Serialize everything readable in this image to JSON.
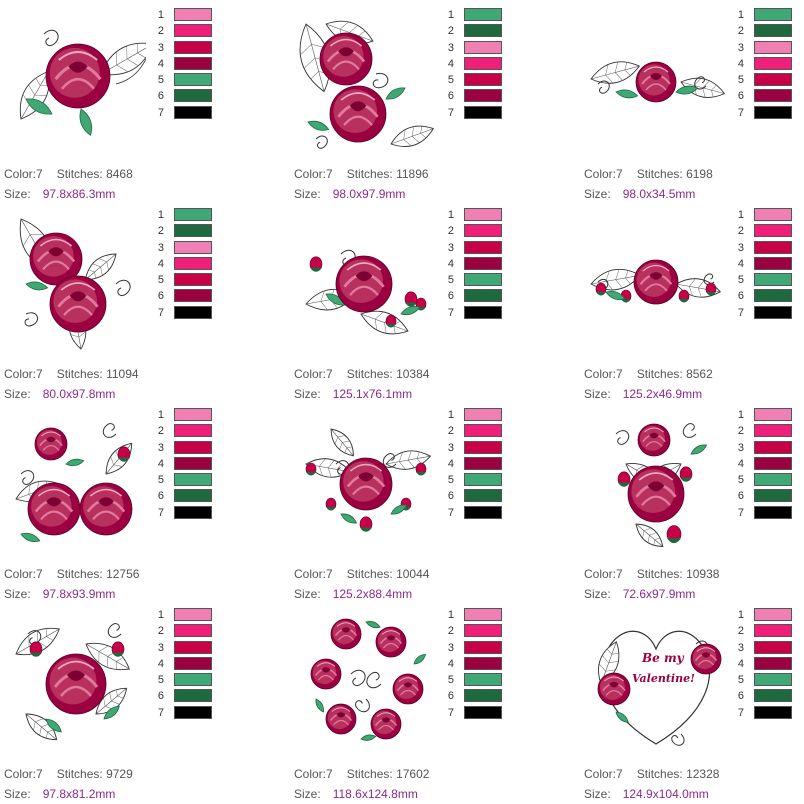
{
  "palette": {
    "rose_light": "#f07fb4",
    "rose_pink": "#f0207a",
    "rose_red": "#c80048",
    "rose_dark": "#9b0040",
    "leaf_light": "#3fa874",
    "leaf_dark": "#1e6a3e",
    "black": "#000000"
  },
  "labels": {
    "color": "Color:",
    "stitches": "Stitches:",
    "size": "Size:"
  },
  "designs": [
    {
      "color_count": "7",
      "stitches": "8468",
      "size": "97.8x86.3mm",
      "thread_numbers": [
        "1",
        "2",
        "3",
        "4",
        "5",
        "6",
        "7"
      ],
      "threads": [
        "#f07fb4",
        "#f0207a",
        "#c80048",
        "#9b0040",
        "#3fa874",
        "#1e6a3e",
        "#000000"
      ]
    },
    {
      "color_count": "7",
      "stitches": "11896",
      "size": "98.0x97.9mm",
      "thread_numbers": [
        "1",
        "2",
        "3",
        "4",
        "5",
        "6",
        "7"
      ],
      "threads": [
        "#3fa874",
        "#1e6a3e",
        "#f07fb4",
        "#f0207a",
        "#c80048",
        "#9b0040",
        "#000000"
      ]
    },
    {
      "color_count": "7",
      "stitches": "6198",
      "size": "98.0x34.5mm",
      "thread_numbers": [
        "1",
        "2",
        "3",
        "4",
        "5",
        "6",
        "7"
      ],
      "threads": [
        "#3fa874",
        "#1e6a3e",
        "#f07fb4",
        "#f0207a",
        "#c80048",
        "#9b0040",
        "#000000"
      ]
    },
    {
      "color_count": "7",
      "stitches": "11094",
      "size": "80.0x97.8mm",
      "thread_numbers": [
        "1",
        "2",
        "3",
        "4",
        "5",
        "6",
        "7"
      ],
      "threads": [
        "#3fa874",
        "#1e6a3e",
        "#f07fb4",
        "#f0207a",
        "#c80048",
        "#9b0040",
        "#000000"
      ]
    },
    {
      "color_count": "7",
      "stitches": "10384",
      "size": "125.1x76.1mm",
      "thread_numbers": [
        "1",
        "2",
        "3",
        "4",
        "5",
        "6",
        "7"
      ],
      "threads": [
        "#f07fb4",
        "#f0207a",
        "#c80048",
        "#9b0040",
        "#3fa874",
        "#1e6a3e",
        "#000000"
      ]
    },
    {
      "color_count": "7",
      "stitches": "8562",
      "size": "125.2x46.9mm",
      "thread_numbers": [
        "1",
        "2",
        "3",
        "4",
        "5",
        "6",
        "7"
      ],
      "threads": [
        "#f07fb4",
        "#f0207a",
        "#c80048",
        "#9b0040",
        "#3fa874",
        "#1e6a3e",
        "#000000"
      ]
    },
    {
      "color_count": "7",
      "stitches": "12756",
      "size": "97.8x93.9mm",
      "thread_numbers": [
        "1",
        "2",
        "3",
        "4",
        "5",
        "6",
        "7"
      ],
      "threads": [
        "#f07fb4",
        "#f0207a",
        "#c80048",
        "#9b0040",
        "#3fa874",
        "#1e6a3e",
        "#000000"
      ]
    },
    {
      "color_count": "7",
      "stitches": "10044",
      "size": "125.2x88.4mm",
      "thread_numbers": [
        "1",
        "2",
        "3",
        "4",
        "5",
        "6",
        "7"
      ],
      "threads": [
        "#f07fb4",
        "#f0207a",
        "#c80048",
        "#9b0040",
        "#3fa874",
        "#1e6a3e",
        "#000000"
      ]
    },
    {
      "color_count": "7",
      "stitches": "10938",
      "size": "72.6x97.9mm",
      "thread_numbers": [
        "1",
        "2",
        "3",
        "4",
        "5",
        "6",
        "7"
      ],
      "threads": [
        "#f07fb4",
        "#f0207a",
        "#c80048",
        "#9b0040",
        "#3fa874",
        "#1e6a3e",
        "#000000"
      ]
    },
    {
      "color_count": "7",
      "stitches": "9729",
      "size": "97.8x81.2mm",
      "thread_numbers": [
        "1",
        "2",
        "3",
        "4",
        "5",
        "6",
        "7"
      ],
      "threads": [
        "#f07fb4",
        "#f0207a",
        "#c80048",
        "#9b0040",
        "#3fa874",
        "#1e6a3e",
        "#000000"
      ]
    },
    {
      "color_count": "7",
      "stitches": "17602",
      "size": "118.6x124.8mm",
      "thread_numbers": [
        "1",
        "2",
        "3",
        "4",
        "5",
        "6",
        "7"
      ],
      "threads": [
        "#f07fb4",
        "#f0207a",
        "#c80048",
        "#9b0040",
        "#3fa874",
        "#1e6a3e",
        "#000000"
      ]
    },
    {
      "color_count": "7",
      "stitches": "12328",
      "size": "124.9x104.0mm",
      "thread_numbers": [
        "1",
        "2",
        "3",
        "4",
        "5",
        "6",
        "7"
      ],
      "threads": [
        "#f07fb4",
        "#f0207a",
        "#c80048",
        "#9b0040",
        "#3fa874",
        "#1e6a3e",
        "#000000"
      ],
      "art_text": [
        "Be my",
        "Valentine!"
      ]
    }
  ]
}
